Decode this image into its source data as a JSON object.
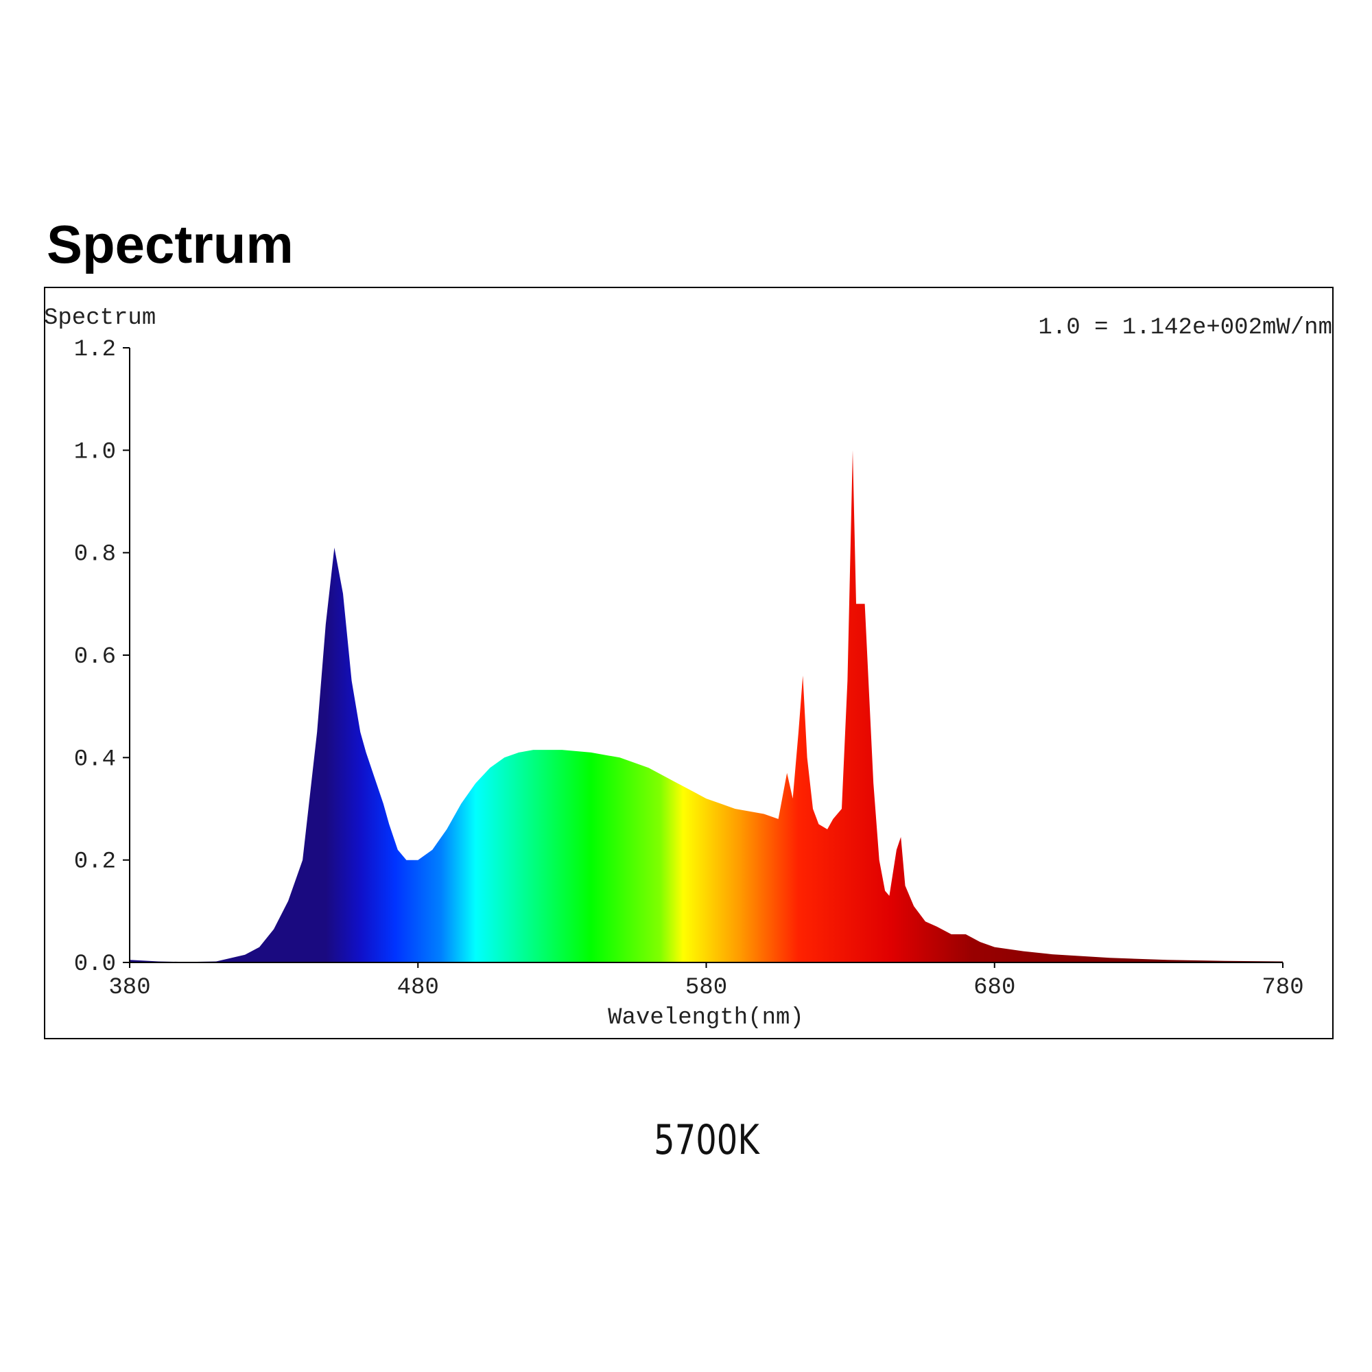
{
  "heading": "Spectrum",
  "chart_data": {
    "type": "area",
    "ylabel": "Spectrum",
    "annotation": "1.0 = 1.142e+002mW/nm",
    "xlabel": "Wavelength(nm)",
    "x": [
      380,
      390,
      400,
      410,
      420,
      425,
      430,
      435,
      440,
      445,
      448,
      451,
      454,
      457,
      460,
      462,
      465,
      468,
      470,
      473,
      476,
      480,
      485,
      490,
      495,
      500,
      505,
      510,
      515,
      520,
      530,
      540,
      550,
      560,
      570,
      580,
      585,
      590,
      600,
      605,
      608,
      610,
      612,
      613.5,
      615,
      617,
      619,
      622,
      624,
      627,
      629,
      630.8,
      632,
      635,
      638,
      640,
      642,
      643.5,
      646,
      647.5,
      649,
      652,
      656,
      660,
      665,
      670,
      675,
      680,
      690,
      700,
      720,
      740,
      760,
      780
    ],
    "values": [
      0.005,
      0.002,
      0.001,
      0.002,
      0.015,
      0.03,
      0.065,
      0.12,
      0.2,
      0.45,
      0.66,
      0.81,
      0.72,
      0.55,
      0.45,
      0.41,
      0.36,
      0.31,
      0.27,
      0.22,
      0.2,
      0.2,
      0.22,
      0.26,
      0.31,
      0.35,
      0.38,
      0.4,
      0.41,
      0.415,
      0.415,
      0.41,
      0.4,
      0.38,
      0.35,
      0.32,
      0.31,
      0.3,
      0.29,
      0.28,
      0.37,
      0.32,
      0.45,
      0.56,
      0.4,
      0.3,
      0.27,
      0.26,
      0.28,
      0.3,
      0.55,
      1.0,
      0.7,
      0.7,
      0.35,
      0.2,
      0.14,
      0.13,
      0.22,
      0.245,
      0.15,
      0.11,
      0.08,
      0.07,
      0.055,
      0.055,
      0.04,
      0.03,
      0.022,
      0.016,
      0.009,
      0.005,
      0.003,
      0.002
    ],
    "xlim": [
      380,
      780
    ],
    "xticks": [
      380,
      480,
      580,
      680,
      780
    ],
    "ylim": [
      0,
      1.2
    ],
    "yticks": [
      {
        "value": 0,
        "label": "0.0"
      },
      0.2,
      0.4,
      0.6,
      0.8,
      {
        "value": 1,
        "label": "1.0"
      },
      1.2
    ]
  },
  "caption": "5700K"
}
